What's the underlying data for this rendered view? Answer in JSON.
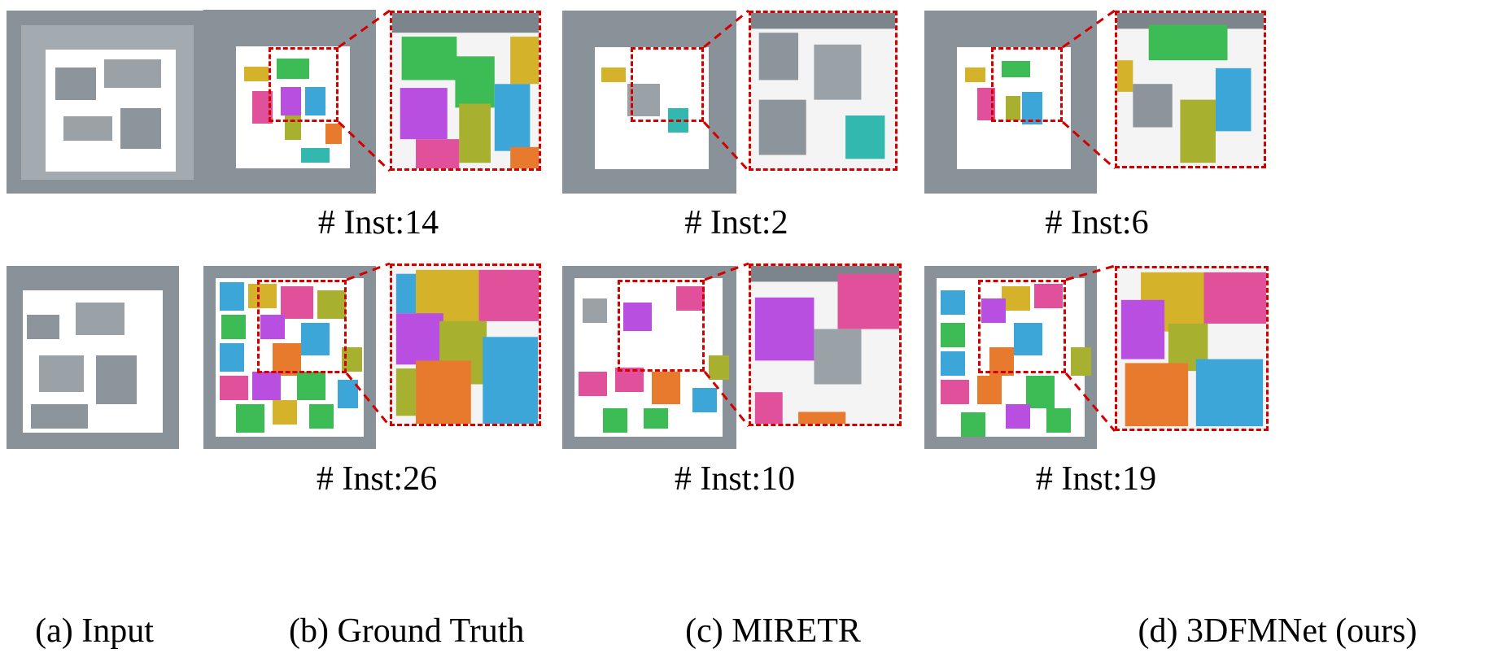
{
  "figure": {
    "row1_counts": {
      "ground_truth": "# Inst:14",
      "miretr": "# Inst:2",
      "ours": "# Inst:6"
    },
    "row2_counts": {
      "ground_truth": "# Inst:26",
      "miretr": "# Inst:10",
      "ours": "# Inst:19"
    },
    "captions": {
      "input": "(a) Input",
      "ground_truth": "(b) Ground Truth",
      "miretr": "(c) MIRETR",
      "ours": "(d) 3DFMNet (ours)"
    },
    "colors": {
      "zoom_border": "#d40000",
      "point_cloud": "#7d858c",
      "instance_palette": [
        "#3dbb55",
        "#d4b32a",
        "#b84fe0",
        "#e0509b",
        "#3da6d8",
        "#e87a2e",
        "#a8b02f",
        "#33b8b0"
      ]
    }
  }
}
